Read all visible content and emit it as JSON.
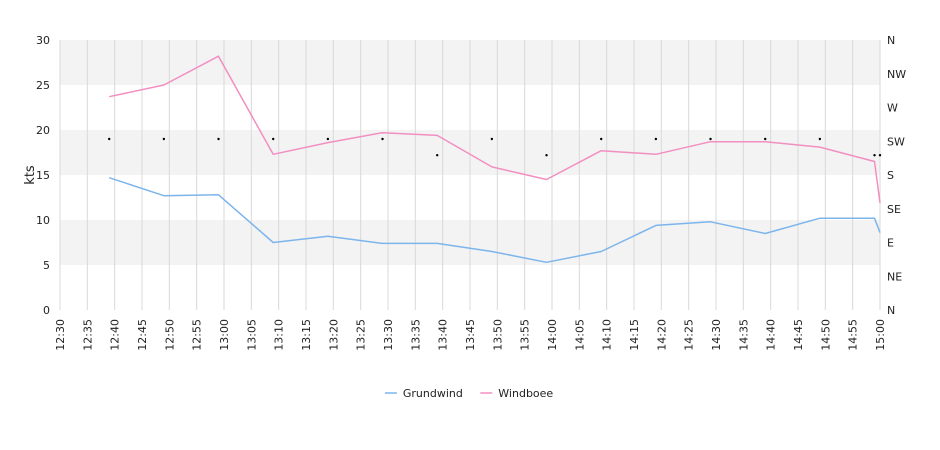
{
  "chart_data": {
    "type": "line",
    "ylabel": "kts",
    "ylim": [
      0,
      30
    ],
    "yticks": [
      0,
      5,
      10,
      15,
      20,
      25,
      30
    ],
    "x_ticks": [
      "12:30",
      "12:35",
      "12:40",
      "12:45",
      "12:50",
      "12:55",
      "13:00",
      "13:05",
      "13:10",
      "13:15",
      "13:20",
      "13:25",
      "13:30",
      "13:35",
      "13:40",
      "13:45",
      "13:50",
      "13:55",
      "14:00",
      "14:05",
      "14:10",
      "14:15",
      "14:20",
      "14:25",
      "14:30",
      "14:35",
      "14:40",
      "14:45",
      "14:50",
      "14:55",
      "15:00"
    ],
    "right_axis_labels": [
      "N",
      "NE",
      "E",
      "SE",
      "S",
      "SW",
      "W",
      "NW",
      "N"
    ],
    "grid": true,
    "legend_position": "bottom-center",
    "series": [
      {
        "name": "Grundwind",
        "color": "#7cb5ec",
        "points": [
          [
            "12:39",
            14.7
          ],
          [
            "12:49",
            12.7
          ],
          [
            "12:59",
            12.8
          ],
          [
            "13:09",
            7.5
          ],
          [
            "13:19",
            8.2
          ],
          [
            "13:29",
            7.4
          ],
          [
            "13:39",
            7.4
          ],
          [
            "13:49",
            6.5
          ],
          [
            "13:59",
            5.3
          ],
          [
            "14:09",
            6.5
          ],
          [
            "14:19",
            9.4
          ],
          [
            "14:29",
            9.8
          ],
          [
            "14:39",
            8.5
          ],
          [
            "14:49",
            10.2
          ],
          [
            "14:59",
            10.2
          ],
          [
            "15:00",
            8.6
          ]
        ]
      },
      {
        "name": "Windboee",
        "color": "#f28fc1",
        "points": [
          [
            "12:39",
            23.7
          ],
          [
            "12:49",
            25.0
          ],
          [
            "12:59",
            28.2
          ],
          [
            "13:09",
            17.3
          ],
          [
            "13:19",
            18.6
          ],
          [
            "13:29",
            19.7
          ],
          [
            "13:39",
            19.4
          ],
          [
            "13:49",
            15.9
          ],
          [
            "13:59",
            14.5
          ],
          [
            "14:09",
            17.7
          ],
          [
            "14:19",
            17.3
          ],
          [
            "14:29",
            18.7
          ],
          [
            "14:39",
            18.7
          ],
          [
            "14:49",
            18.1
          ],
          [
            "14:59",
            16.5
          ],
          [
            "15:00",
            11.9
          ]
        ]
      }
    ],
    "direction_markers": [
      [
        "12:39",
        19.0
      ],
      [
        "12:49",
        19.0
      ],
      [
        "12:59",
        19.0
      ],
      [
        "13:09",
        19.0
      ],
      [
        "13:19",
        19.0
      ],
      [
        "13:29",
        19.0
      ],
      [
        "13:39",
        17.2
      ],
      [
        "13:49",
        19.0
      ],
      [
        "13:59",
        17.2
      ],
      [
        "14:09",
        19.0
      ],
      [
        "14:19",
        19.0
      ],
      [
        "14:29",
        19.0
      ],
      [
        "14:39",
        19.0
      ],
      [
        "14:49",
        19.0
      ],
      [
        "14:59",
        17.2
      ],
      [
        "15:00",
        17.2
      ]
    ]
  }
}
